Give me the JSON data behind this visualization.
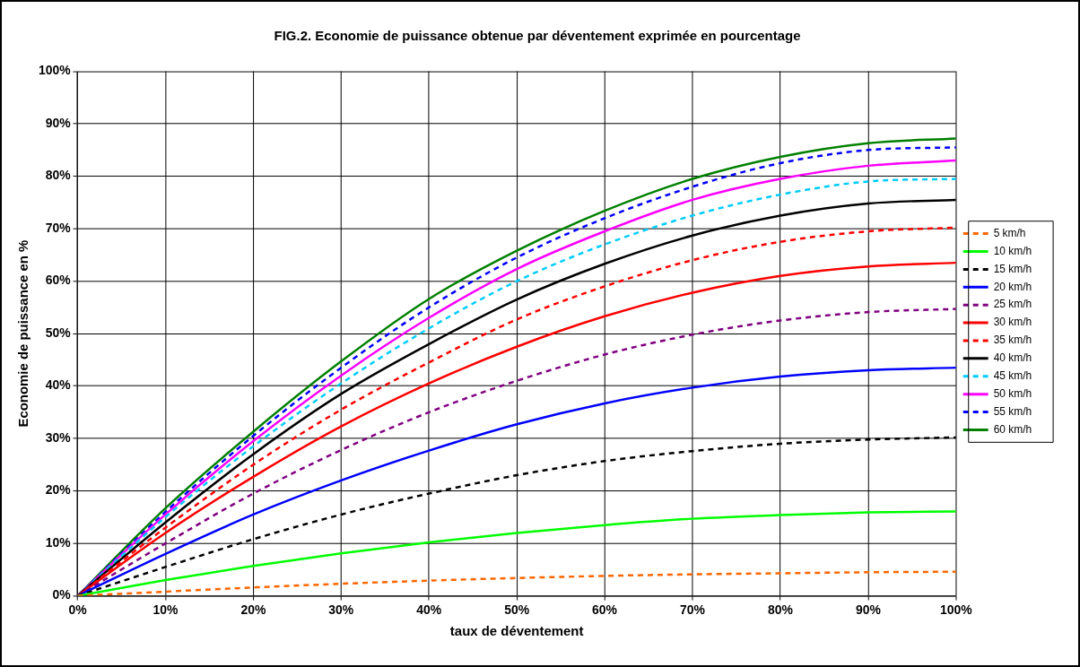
{
  "chart_data": {
    "type": "line",
    "title": "FIG.2. Economie de puissance obtenue par déventement exprimée en pourcentage",
    "xlabel": "taux de déventement",
    "ylabel": "Economie de puissance en %",
    "x": [
      0,
      10,
      20,
      30,
      40,
      50,
      60,
      70,
      80,
      90,
      100
    ],
    "xlim": [
      0,
      100
    ],
    "ylim": [
      0,
      100
    ],
    "xticks": [
      {
        "value": 0,
        "label": "0%"
      },
      {
        "value": 10,
        "label": "10%"
      },
      {
        "value": 20,
        "label": "20%"
      },
      {
        "value": 30,
        "label": "30%"
      },
      {
        "value": 40,
        "label": "40%"
      },
      {
        "value": 50,
        "label": "50%"
      },
      {
        "value": 60,
        "label": "60%"
      },
      {
        "value": 70,
        "label": "70%"
      },
      {
        "value": 80,
        "label": "80%"
      },
      {
        "value": 90,
        "label": "90%"
      },
      {
        "value": 100,
        "label": "100%"
      }
    ],
    "yticks": [
      {
        "value": 0,
        "label": "0%"
      },
      {
        "value": 10,
        "label": "10%"
      },
      {
        "value": 20,
        "label": "20%"
      },
      {
        "value": 30,
        "label": "30%"
      },
      {
        "value": 40,
        "label": "40%"
      },
      {
        "value": 50,
        "label": "50%"
      },
      {
        "value": 60,
        "label": "60%"
      },
      {
        "value": 70,
        "label": "70%"
      },
      {
        "value": 80,
        "label": "80%"
      },
      {
        "value": 90,
        "label": "90%"
      },
      {
        "value": 100,
        "label": "100%"
      }
    ],
    "grid": true,
    "legend": "right",
    "marker": "none",
    "series": [
      {
        "name": "5 km/h",
        "color": "#ff6600",
        "line_style": "dashed",
        "values": [
          0,
          0.8,
          1.6,
          2.3,
          2.9,
          3.4,
          3.8,
          4.1,
          4.3,
          4.5,
          4.6
        ]
      },
      {
        "name": "10 km/h",
        "color": "#00ff00",
        "line_style": "solid",
        "values": [
          0,
          3,
          5.7,
          8.1,
          10.2,
          12,
          13.5,
          14.7,
          15.4,
          15.9,
          16.1
        ]
      },
      {
        "name": "15 km/h",
        "color": "#000000",
        "line_style": "dashed",
        "values": [
          0,
          5.5,
          10.8,
          15.5,
          19.5,
          23,
          25.7,
          27.6,
          29,
          29.8,
          30.2
        ]
      },
      {
        "name": "20 km/h",
        "color": "#0000ff",
        "line_style": "solid",
        "values": [
          0,
          8,
          15.5,
          22,
          27.7,
          32.7,
          36.7,
          39.7,
          41.8,
          43,
          43.5
        ]
      },
      {
        "name": "25 km/h",
        "color": "#800080",
        "line_style": "dashed",
        "values": [
          0,
          10,
          19.5,
          27.8,
          35,
          41,
          46,
          49.8,
          52.5,
          54.1,
          54.7
        ]
      },
      {
        "name": "30 km/h",
        "color": "#ff0000",
        "line_style": "solid",
        "values": [
          0,
          12,
          22.7,
          32.3,
          40.5,
          47.5,
          53.3,
          57.8,
          61,
          62.8,
          63.5
        ]
      },
      {
        "name": "35 km/h",
        "color": "#ff0000",
        "line_style": "dashed",
        "values": [
          0,
          13,
          25,
          35.5,
          44.5,
          52.7,
          59,
          64,
          67.5,
          69.5,
          70.2
        ]
      },
      {
        "name": "40 km/h",
        "color": "#000000",
        "line_style": "solid",
        "values": [
          0,
          14,
          27,
          38.5,
          48,
          56.5,
          63.3,
          68.7,
          72.5,
          74.8,
          75.5
        ]
      },
      {
        "name": "45 km/h",
        "color": "#00ccff",
        "line_style": "dashed",
        "values": [
          0,
          15,
          28.5,
          40.5,
          51,
          60,
          67,
          72.5,
          76.5,
          79,
          79.5
        ]
      },
      {
        "name": "50 km/h",
        "color": "#ff00ff",
        "line_style": "solid",
        "values": [
          0,
          15.5,
          29.5,
          42,
          53,
          62.3,
          69.5,
          75.5,
          79.5,
          82,
          83
        ]
      },
      {
        "name": "55 km/h",
        "color": "#0000ff",
        "line_style": "dashed",
        "values": [
          0,
          16,
          30.5,
          43.5,
          55,
          64.5,
          72,
          78,
          82.5,
          85,
          85.5
        ]
      },
      {
        "name": "60 km/h",
        "color": "#008000",
        "line_style": "solid",
        "values": [
          0,
          16.7,
          31.3,
          44.7,
          56.6,
          65.8,
          73.4,
          79.5,
          83.7,
          86.3,
          87.2
        ]
      }
    ]
  }
}
